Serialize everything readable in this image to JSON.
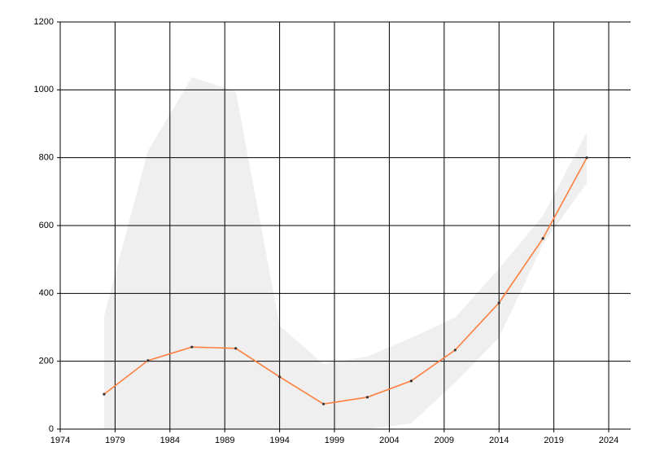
{
  "chart_data": {
    "type": "line",
    "x": [
      1978,
      1982,
      1986,
      1990,
      1994,
      1998,
      2002,
      2006,
      2010,
      2014,
      2018,
      2022
    ],
    "series": [
      {
        "color": "#ff7f3f",
        "values": [
          103,
          202,
          242,
          238,
          154,
          74,
          94,
          142,
          233,
          372,
          562,
          800
        ]
      }
    ],
    "band": {
      "color": "#efefef",
      "upper": [
        333,
        820,
        1037,
        996,
        305,
        192,
        214,
        269,
        329,
        473,
        629,
        874
      ],
      "lower": [
        0,
        0,
        0,
        0,
        0,
        0,
        0,
        17,
        137,
        269,
        545,
        725
      ]
    },
    "xlim": [
      1974,
      2026
    ],
    "xticks": [
      1974,
      1979,
      1984,
      1989,
      1994,
      1999,
      2004,
      2009,
      2014,
      2019,
      2024
    ],
    "ylim": [
      0,
      1200
    ],
    "yticks": [
      0,
      200,
      400,
      600,
      800,
      1000,
      1200
    ],
    "grid": true
  }
}
